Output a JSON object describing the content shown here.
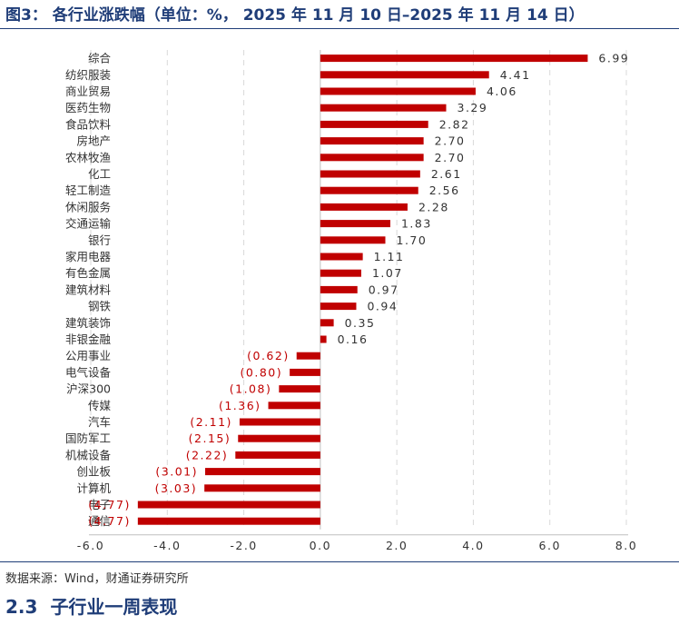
{
  "figure": {
    "title": "图3： 各行业涨跌幅（单位：%， 2025 年 11 月 10 日–2025 年 11 月 14 日）",
    "source": "数据来源：Wind，财通证券研究所"
  },
  "section": {
    "number": "2.3",
    "title": "子行业一周表现"
  },
  "colors": {
    "bar": "#c00000",
    "negative_label": "#c00000",
    "positive_label": "#333333",
    "title": "#1f3d78"
  },
  "chart_data": {
    "type": "bar",
    "orientation": "horizontal",
    "title": "各行业涨跌幅（单位：%， 2025 年 11 月 10 日–2025 年 11 月 14 日）",
    "xlabel": "",
    "ylabel": "",
    "xlim": [
      -6.0,
      8.0
    ],
    "xticks": [
      "-6.0",
      "-4.0",
      "-2.0",
      "0.0",
      "2.0",
      "4.0",
      "6.0",
      "8.0"
    ],
    "grid": "vertical dashed",
    "categories": [
      "综合",
      "纺织服装",
      "商业贸易",
      "医药生物",
      "食品饮料",
      "房地产",
      "农林牧渔",
      "化工",
      "轻工制造",
      "休闲服务",
      "交通运输",
      "银行",
      "家用电器",
      "有色金属",
      "建筑材料",
      "钢铁",
      "建筑装饰",
      "非银金融",
      "公用事业",
      "电气设备",
      "沪深300",
      "传媒",
      "汽车",
      "国防军工",
      "机械设备",
      "创业板",
      "计算机",
      "电子",
      "通信"
    ],
    "values": [
      6.99,
      4.41,
      4.06,
      3.29,
      2.82,
      2.7,
      2.7,
      2.61,
      2.56,
      2.28,
      1.83,
      1.7,
      1.11,
      1.07,
      0.97,
      0.94,
      0.35,
      0.16,
      -0.62,
      -0.8,
      -1.08,
      -1.36,
      -2.11,
      -2.15,
      -2.22,
      -3.01,
      -3.03,
      -4.77,
      -4.77
    ],
    "labels": [
      "6.99",
      "4.41",
      "4.06",
      "3.29",
      "2.82",
      "2.70",
      "2.70",
      "2.61",
      "2.56",
      "2.28",
      "1.83",
      "1.70",
      "1.11",
      "1.07",
      "0.97",
      "0.94",
      "0.35",
      "0.16",
      "(0.62)",
      "(0.80)",
      "(1.08)",
      "(1.36)",
      "(2.11)",
      "(2.15)",
      "(2.22)",
      "(3.01)",
      "(3.03)",
      "(4.77)",
      "(4.77)"
    ]
  }
}
